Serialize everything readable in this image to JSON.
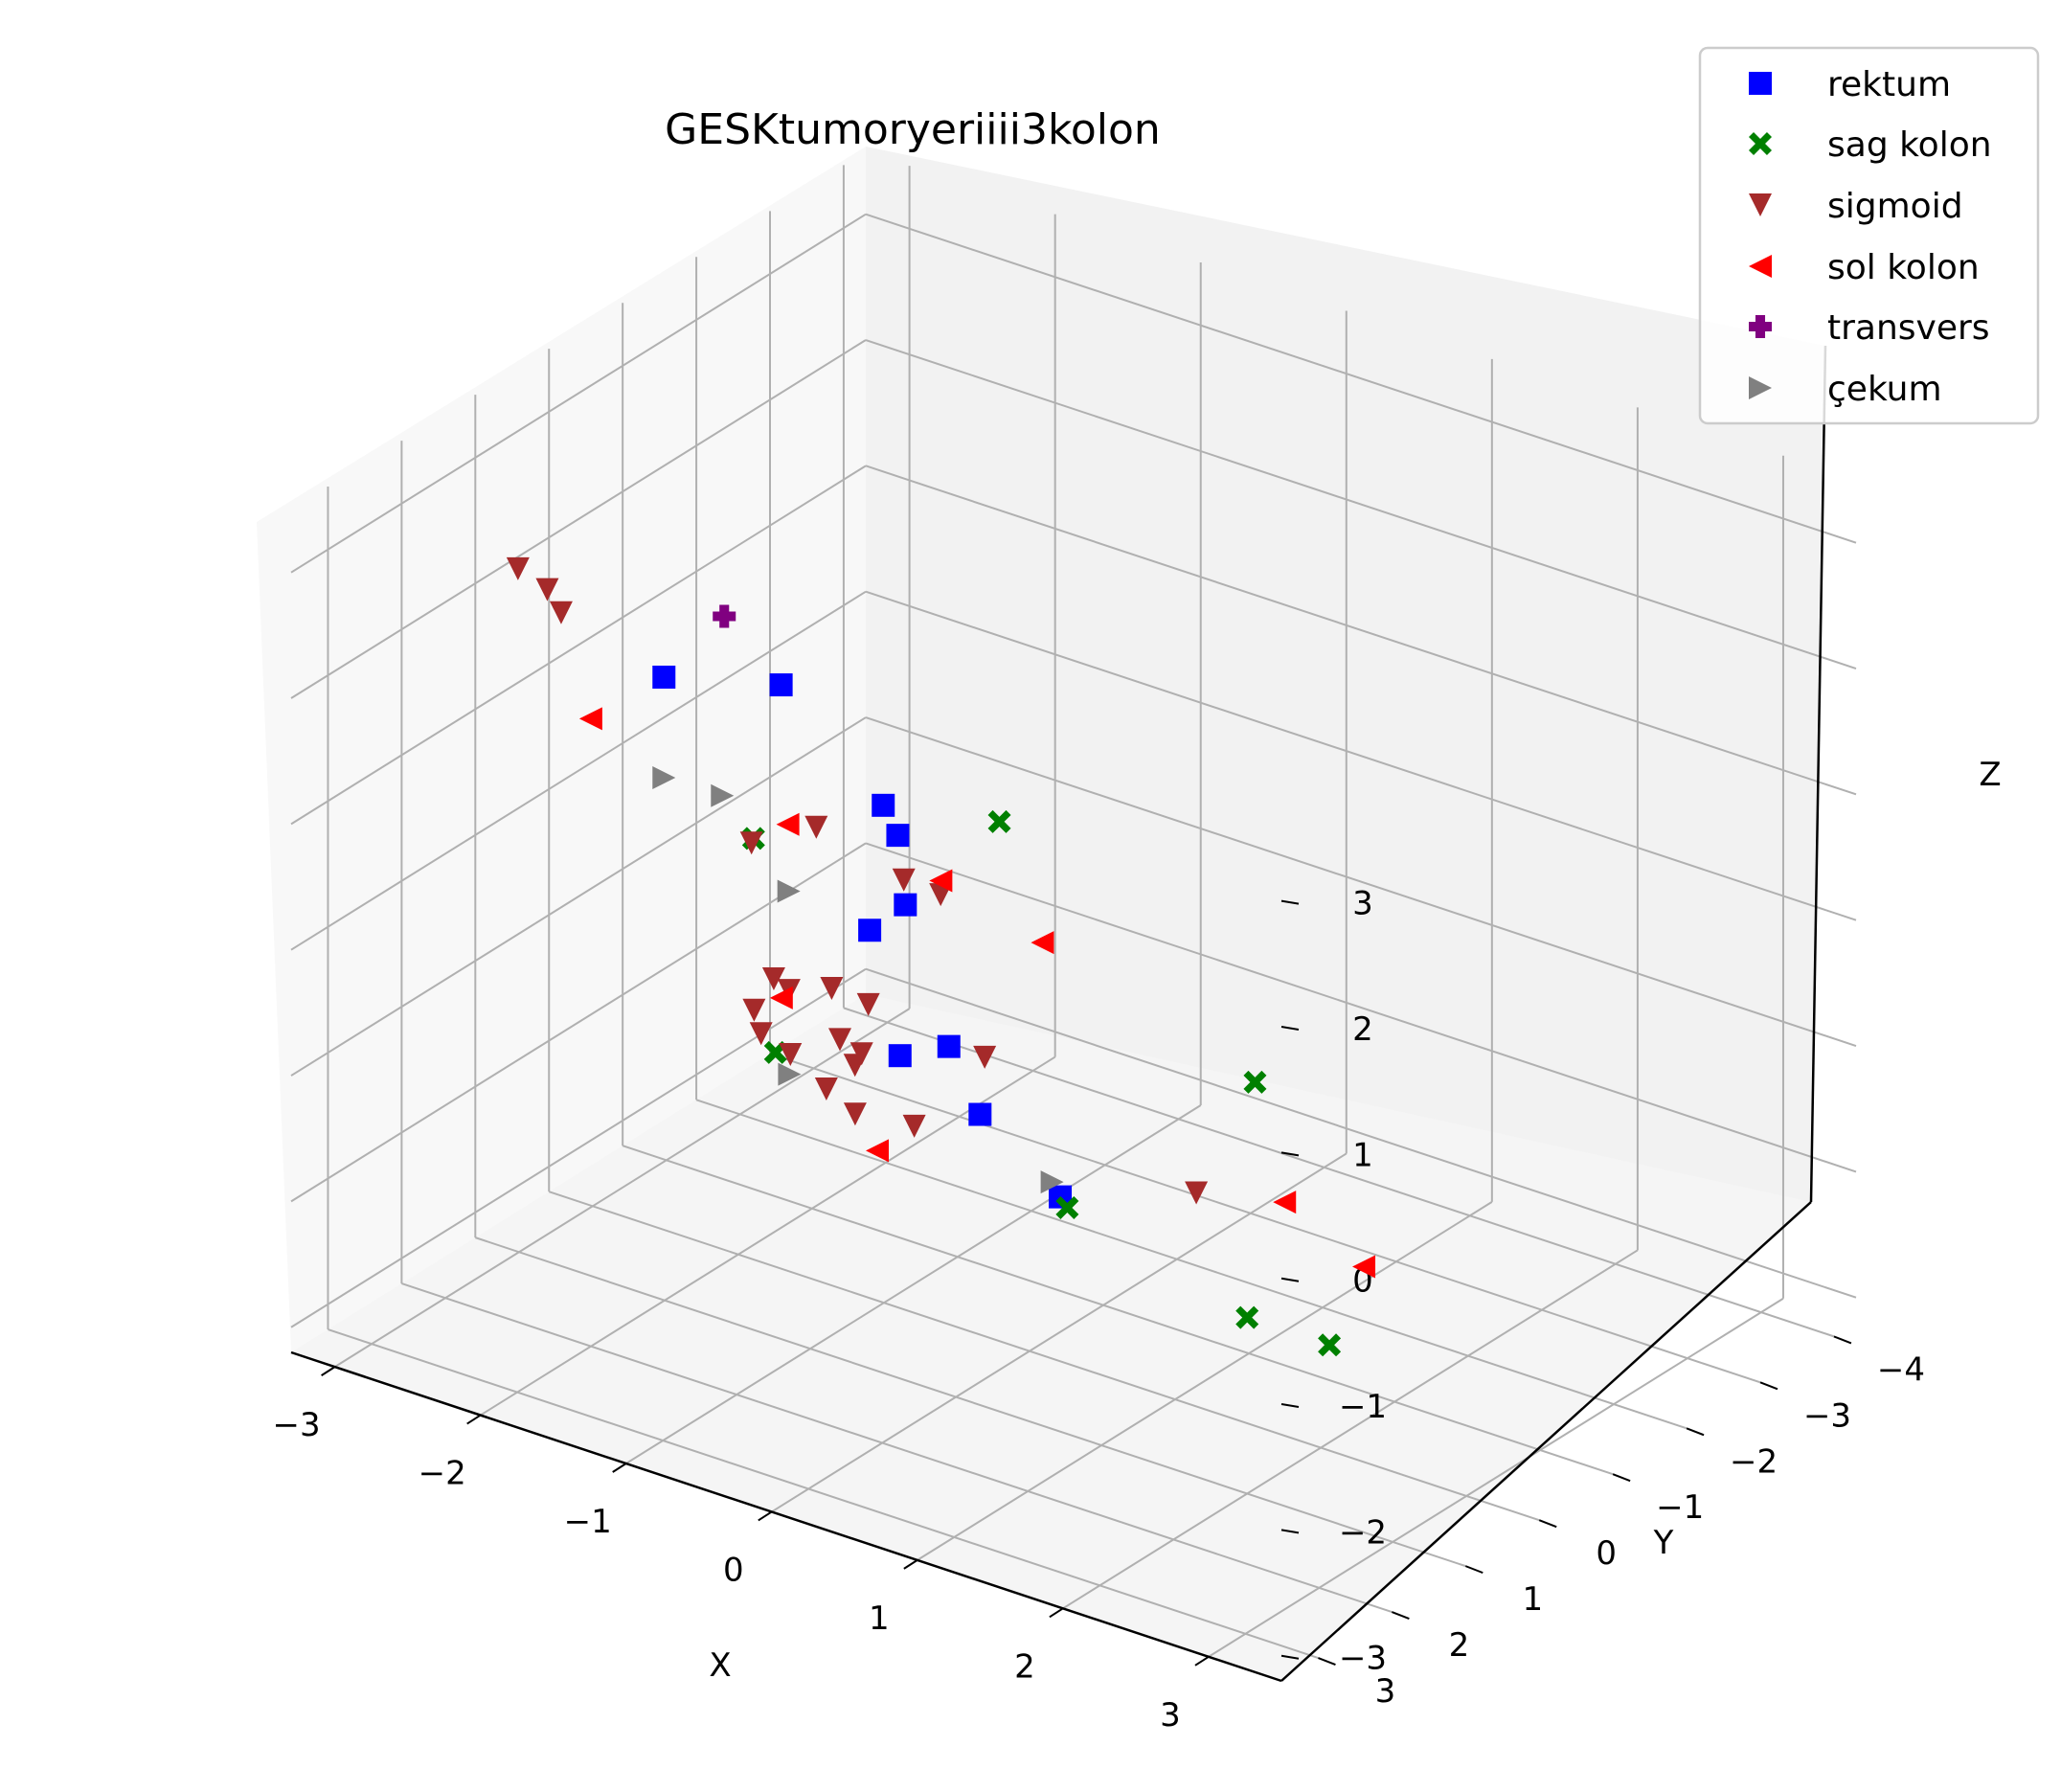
{
  "chart_data": {
    "type": "scatter",
    "title": "GESKtumoryeriiii3kolon",
    "xlabel": "X",
    "ylabel": "Y",
    "zlabel": "Z",
    "xlim": [
      -3.3,
      3.5
    ],
    "ylim": [
      -4.3,
      3.5
    ],
    "zlim": [
      -3.2,
      3.5
    ],
    "x_ticks": [
      "−3",
      "−2",
      "−1",
      "0",
      "1",
      "2",
      "3"
    ],
    "y_ticks": [
      "−4",
      "−3",
      "−2",
      "−1",
      "0",
      "1",
      "2",
      "3"
    ],
    "z_ticks": [
      "−3",
      "−2",
      "−1",
      "0",
      "1",
      "2",
      "3"
    ],
    "grid": true,
    "legend_position": "top-right",
    "series": [
      {
        "name": "rektum",
        "marker": "square",
        "color": "#0000ff",
        "points": [
          [
            -1.6,
            1.8,
            2.2
          ],
          [
            -1.2,
            1.0,
            2.0
          ],
          [
            -0.6,
            0.8,
            1.2
          ],
          [
            -0.5,
            0.8,
            1.0
          ],
          [
            -0.6,
            0.5,
            0.3
          ],
          [
            -0.2,
            0.7,
            -0.6
          ],
          [
            -1.3,
            -0.4,
            -0.5
          ],
          [
            -1.8,
            -1.8,
            -2.2
          ],
          [
            -1.2,
            -1.7,
            -2.4
          ],
          [
            -0.7,
            -1.8,
            -2.9
          ]
        ]
      },
      {
        "name": "sag kolon",
        "marker": "x",
        "color": "#008000",
        "points": [
          [
            0.4,
            1.2,
            1.6
          ],
          [
            -2.3,
            -0.8,
            -0.3
          ],
          [
            -2.2,
            -0.9,
            -2.0
          ],
          [
            1.7,
            0.3,
            -0.3
          ],
          [
            2.0,
            1.0,
            -1.8
          ],
          [
            -0.5,
            -1.5,
            -2.8
          ],
          [
            1.3,
            -1.5,
            -3.2
          ]
        ]
      },
      {
        "name": "sigmoid",
        "marker": "triangle-down",
        "color": "#a52a2a",
        "points": [
          [
            -2.4,
            2.2,
            2.9
          ],
          [
            -2.3,
            2.0,
            2.7
          ],
          [
            -1.8,
            2.8,
            3.0
          ],
          [
            -0.2,
            2.5,
            1.8
          ],
          [
            -1.1,
            1.6,
            1.0
          ],
          [
            0.3,
            2.3,
            1.5
          ],
          [
            0.3,
            1.8,
            1.2
          ],
          [
            -0.6,
            1.5,
            0.0
          ],
          [
            -0.5,
            1.2,
            -0.2
          ],
          [
            -1.2,
            1.1,
            -0.3
          ],
          [
            0.4,
            1.4,
            -0.2
          ],
          [
            -1.5,
            0.3,
            -0.8
          ],
          [
            -0.9,
            0.5,
            -1.0
          ],
          [
            -1.1,
            0.4,
            -1.0
          ],
          [
            -1.3,
            -0.2,
            -1.5
          ],
          [
            1.6,
            0.9,
            -1.0
          ],
          [
            -1.4,
            -0.4,
            -2.0
          ],
          [
            -1.8,
            -0.8,
            -2.1
          ],
          [
            -2.4,
            -1.1,
            -2.0
          ],
          [
            -2.6,
            -1.4,
            -2.0
          ],
          [
            -2.3,
            -1.3,
            -2.2
          ],
          [
            -1.5,
            -1.4,
            -2.5
          ]
        ]
      },
      {
        "name": "sol kolon",
        "marker": "triangle-left",
        "color": "#ff0000",
        "points": [
          [
            -1.9,
            2.2,
            1.9
          ],
          [
            0.2,
            1.6,
            1.2
          ],
          [
            1.1,
            2.0,
            1.2
          ],
          [
            -0.8,
            1.7,
            1.3
          ],
          [
            -1.3,
            0.8,
            -0.6
          ],
          [
            -1.4,
            -0.7,
            -2.4
          ],
          [
            1.7,
            -0.1,
            -1.4
          ],
          [
            2.7,
            0.8,
            -1.2
          ]
        ]
      },
      {
        "name": "transvers",
        "marker": "plus",
        "color": "#800080",
        "points": [
          [
            -2.4,
            -0.6,
            1.5
          ]
        ]
      },
      {
        "name": "çekum",
        "marker": "triangle-right",
        "color": "#808080",
        "points": [
          [
            -1.6,
            1.8,
            1.4
          ],
          [
            -1.3,
            1.6,
            1.3
          ],
          [
            -1.4,
            0.5,
            0.1
          ],
          [
            -1.8,
            -0.3,
            -1.8
          ],
          [
            -0.3,
            -0.9,
            -2.3
          ]
        ]
      }
    ]
  }
}
